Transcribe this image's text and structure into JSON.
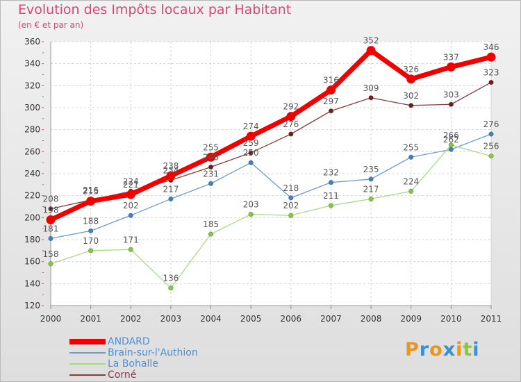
{
  "chart_data": {
    "type": "line",
    "title": "Evolution des Impôts locaux par Habitant",
    "subtitle": "(en € et par an)",
    "categories": [
      "2000",
      "2001",
      "2002",
      "2003",
      "2004",
      "2005",
      "2006",
      "2007",
      "2008",
      "2009",
      "2010",
      "2011"
    ],
    "ylim": [
      120,
      360
    ],
    "yticks": [
      120,
      140,
      160,
      180,
      200,
      220,
      240,
      260,
      280,
      300,
      320,
      340,
      360
    ],
    "grid": true,
    "legend_position": "bottom-left",
    "series": [
      {
        "name": "ANDARD",
        "color": "#f20000",
        "marker": "#f20000",
        "values": [
          198,
          215,
          221,
          238,
          255,
          274,
          292,
          316,
          352,
          326,
          337,
          346
        ]
      },
      {
        "name": "Brain-sur-l'Authion",
        "color": "#6a9ccf",
        "marker": "#3f7fc2",
        "values": [
          181,
          188,
          202,
          217,
          231,
          250,
          218,
          232,
          235,
          255,
          262,
          276
        ]
      },
      {
        "name": "La Bohalle",
        "color": "#a6dc80",
        "marker": "#7ccb3a",
        "values": [
          158,
          170,
          171,
          136,
          185,
          203,
          202,
          211,
          217,
          224,
          266,
          256
        ]
      },
      {
        "name": "Corné",
        "color": "#8a3a3a",
        "marker": "#6b1d1d",
        "values": [
          208,
          216,
          224,
          234,
          246,
          259,
          276,
          297,
          309,
          302,
          303,
          323
        ]
      }
    ]
  },
  "logo": {
    "text": "Proxiti",
    "colors": [
      "#e9951f",
      "#3b8fd3",
      "#e9951f",
      "#3b8fd3",
      "#e9951f",
      "#8cc63f",
      "#3b8fd3"
    ]
  }
}
